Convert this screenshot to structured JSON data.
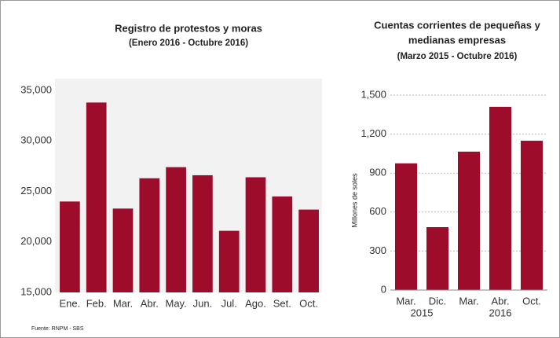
{
  "chart_data": [
    {
      "type": "bar",
      "title": "Registro de protestos y moras",
      "subtitle": "(Enero 2016 - Octubre 2016)",
      "categories": [
        "Ene.",
        "Feb.",
        "Mar.",
        "Abr.",
        "May.",
        "Jun.",
        "Jul.",
        "Ago.",
        "Set.",
        "Oct."
      ],
      "values": [
        24000,
        33800,
        23300,
        26300,
        27400,
        26600,
        21100,
        26400,
        24500,
        23200
      ],
      "color": "#9e0c2c",
      "ylim": [
        15000,
        35000
      ],
      "yticks": [
        {
          "value": 15000,
          "label": "15,000"
        },
        {
          "value": 20000,
          "label": "20,000"
        },
        {
          "value": 25000,
          "label": "25,000"
        },
        {
          "value": 30000,
          "label": "30,000"
        },
        {
          "value": 35000,
          "label": "35,000"
        }
      ],
      "grid": false,
      "source": "Fuente: RNPM - SBS"
    },
    {
      "type": "bar",
      "title": [
        "Cuentas corrientes de pequeñas y",
        "medianas empresas"
      ],
      "subtitle": "(Marzo 2015 - Octubre 2016)",
      "ylabel": "Millones de soles",
      "categories": [
        "Mar.",
        "Dic.",
        "Mar.",
        "Abr.",
        "Oct."
      ],
      "year_labels": [
        "2015",
        "2016"
      ],
      "values": [
        975,
        484,
        1065,
        1410,
        1149
      ],
      "color": "#9e0c2c",
      "ylim": [
        0,
        1500
      ],
      "yticks": [
        0,
        300,
        600,
        900,
        {
          "value": 1200,
          "label": "1,200"
        },
        {
          "value": 1500,
          "label": "1,500"
        }
      ],
      "grid": true
    }
  ]
}
